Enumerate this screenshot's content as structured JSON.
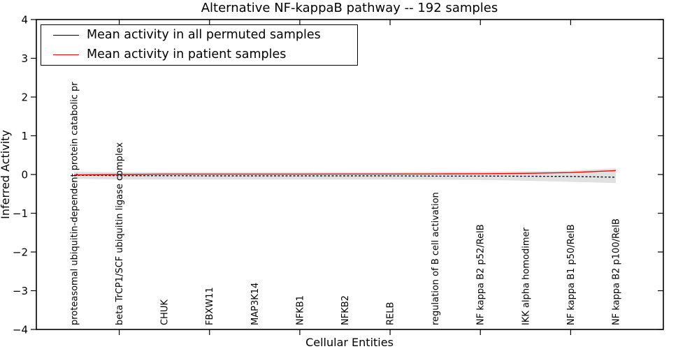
{
  "chart_data": {
    "type": "line",
    "title": "Alternative NF-kappaB pathway -- 192 samples",
    "xlabel": "Cellular Entities",
    "ylabel": "Inferred Activity",
    "ylim": [
      -4,
      4
    ],
    "y_ticks": [
      4,
      3,
      2,
      1,
      0,
      -1,
      -2,
      -3,
      -4
    ],
    "y_tick_labels": [
      "4",
      "3",
      "2",
      "1",
      "0",
      "−1",
      "−2",
      "−3",
      "−4"
    ],
    "grid": false,
    "legend_position": "upper left",
    "categories": [
      "proteasomal ubiquitin-dependent protein catabolic pr",
      "beta TrCP1/SCF ubiquitin ligase complex",
      "CHUK",
      "FBXW11",
      "MAP3K14",
      "NFKB1",
      "NFKB2",
      "RELB",
      "regulation of B cell activation",
      "NF kappa B2 p52/RelB",
      "IKK alpha homodimer",
      "NF kappa B1 p50/RelB",
      "NF kappa B2 p100/RelB"
    ],
    "series": [
      {
        "name": "Mean activity in all permuted samples",
        "color": "#000000",
        "style": "dashed",
        "values": [
          -0.02,
          -0.03,
          -0.03,
          -0.035,
          -0.035,
          -0.035,
          -0.035,
          -0.035,
          -0.04,
          -0.04,
          -0.045,
          -0.05,
          -0.07
        ]
      },
      {
        "name": "Mean activity in patient samples",
        "color": "#ff0000",
        "style": "solid",
        "values": [
          -0.01,
          0.0,
          0.01,
          0.01,
          0.01,
          0.01,
          0.012,
          0.012,
          0.015,
          0.02,
          0.03,
          0.05,
          0.1
        ]
      }
    ],
    "band": {
      "name": "permutation-spread-band",
      "color": "#e1e1e1",
      "upper": [
        0.07,
        0.06,
        0.06,
        0.06,
        0.06,
        0.06,
        0.06,
        0.06,
        0.065,
        0.07,
        0.08,
        0.1,
        0.16
      ],
      "lower": [
        -0.11,
        -0.13,
        -0.13,
        -0.13,
        -0.13,
        -0.13,
        -0.13,
        -0.13,
        -0.135,
        -0.14,
        -0.16,
        -0.19,
        -0.22
      ]
    },
    "axis_color": "#000000",
    "background_color": "#ffffff"
  }
}
